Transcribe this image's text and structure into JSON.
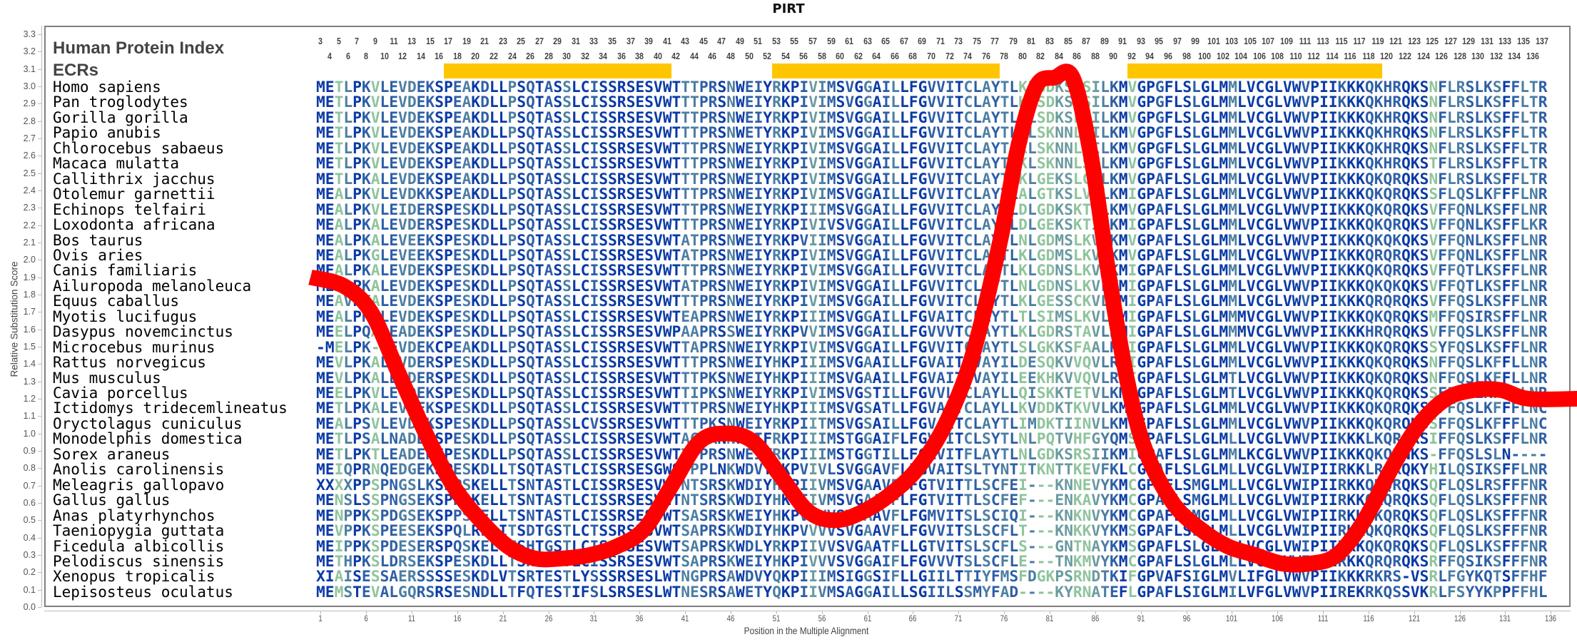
{
  "chart_data": {
    "type": "line",
    "title": "PIRT",
    "xlabel": "Position in the Multiple Alignment",
    "ylabel": "Relative Substitution Score",
    "ylim": [
      0.0,
      3.3
    ],
    "xlim": [
      1,
      136
    ],
    "grid": false,
    "legend": null,
    "y_ticks": [
      "3.3",
      "3.2",
      "3.1",
      "3.0",
      "2.9",
      "2.8",
      "2.7",
      "2.6",
      "2.5",
      "2.4",
      "2.3",
      "2.2",
      "2.1",
      "2.0",
      "1.9",
      "1.8",
      "1.7",
      "1.6",
      "1.5",
      "1.4",
      "1.3",
      "1.2",
      "1.1",
      "1.0",
      "0.9",
      "0.8",
      "0.7",
      "0.6",
      "0.5",
      "0.4",
      "0.3",
      "0.2",
      "0.1",
      "0.0"
    ],
    "x_ticks": [
      "1",
      "6",
      "11",
      "16",
      "21",
      "26",
      "31",
      "36",
      "41",
      "46",
      "51",
      "56",
      "61",
      "66",
      "71",
      "76",
      "81",
      "86",
      "91",
      "96",
      "101",
      "106",
      "111",
      "116",
      "121",
      "126",
      "131",
      "136"
    ],
    "series": [
      {
        "name": "Relative Substitution Score",
        "color": "#ff0000",
        "x": [
          1,
          4,
          7,
          10,
          13,
          16,
          19,
          22,
          25,
          28,
          31,
          34,
          37,
          40,
          43,
          46,
          49,
          52,
          55,
          58,
          61,
          64,
          67,
          70,
          73,
          76,
          78,
          80,
          82,
          84,
          86,
          88,
          90,
          92,
          95,
          98,
          101,
          104,
          107,
          110,
          113,
          116,
          119,
          122,
          125,
          128,
          131,
          134,
          136
        ],
        "values": [
          1.9,
          1.85,
          1.7,
          1.35,
          1.0,
          0.7,
          0.5,
          0.35,
          0.28,
          0.28,
          0.3,
          0.35,
          0.45,
          0.7,
          0.95,
          1.0,
          0.95,
          0.75,
          0.55,
          0.5,
          0.55,
          0.65,
          0.8,
          1.05,
          1.45,
          2.1,
          2.65,
          3.0,
          3.05,
          3.05,
          2.6,
          1.9,
          1.3,
          0.9,
          0.6,
          0.45,
          0.35,
          0.3,
          0.25,
          0.25,
          0.3,
          0.5,
          0.8,
          1.05,
          1.2,
          1.25,
          1.25,
          1.2,
          1.2
        ]
      }
    ],
    "annotations": {
      "human_protein_index_label": "Human Protein Index",
      "ecrs_label": "ECRs",
      "ecr_regions": [
        {
          "start": 17,
          "end": 41
        },
        {
          "start": 53,
          "end": 77
        },
        {
          "start": 92,
          "end": 119
        }
      ]
    }
  },
  "header": {
    "title": "PIRT",
    "human_protein_index_label": "Human Protein Index",
    "ecrs_label": "ECRs",
    "index_odd": [
      "3",
      "5",
      "7",
      "9",
      "11",
      "13",
      "15",
      "17",
      "19",
      "21",
      "23",
      "25",
      "27",
      "29",
      "31",
      "33",
      "35",
      "37",
      "39",
      "41",
      "43",
      "45",
      "47",
      "49",
      "51",
      "53",
      "55",
      "57",
      "59",
      "61",
      "63",
      "65",
      "67",
      "69",
      "71",
      "73",
      "75",
      "77",
      "79",
      "81",
      "83",
      "85",
      "87",
      "89",
      "91",
      "93",
      "95",
      "97",
      "99",
      "101",
      "103",
      "105",
      "107",
      "109",
      "111",
      "113",
      "115",
      "117",
      "119",
      "121",
      "123",
      "125",
      "127",
      "129",
      "131",
      "133",
      "135",
      "137"
    ],
    "index_even": [
      "4",
      "6",
      "8",
      "10",
      "12",
      "14",
      "16",
      "18",
      "20",
      "22",
      "24",
      "26",
      "28",
      "30",
      "32",
      "34",
      "36",
      "38",
      "40",
      "42",
      "44",
      "46",
      "48",
      "50",
      "52",
      "54",
      "56",
      "58",
      "60",
      "62",
      "64",
      "66",
      "68",
      "70",
      "72",
      "74",
      "76",
      "78",
      "80",
      "82",
      "84",
      "86",
      "88",
      "90",
      "92",
      "94",
      "96",
      "98",
      "100",
      "102",
      "104",
      "106",
      "108",
      "110",
      "112",
      "114",
      "116",
      "118",
      "120",
      "122",
      "124",
      "126",
      "128",
      "130",
      "132",
      "134",
      "136"
    ]
  },
  "axes": {
    "ylabel": "Relative Substitution Score",
    "xlabel": "Position in the Multiple Alignment"
  },
  "alignment": [
    {
      "species": "Homo sapiens",
      "sequence": "METLPKVLEVDEKSPEAKDLLPSQTASSLCISSRSESVWTTTPRSNWEIYRKPIVIMSVGGAILLFGVVITCLAYTLKLSDKSLSILKMVGPGFLSLGLMMLVCGLVWVPIIKKKQKHRQKSNFLRSLKSFFLTR"
    },
    {
      "species": "Pan troglodytes",
      "sequence": "METLPKVLEVDEKSPEAKDLLPSQTASSLCISSRSESVWTTTPRSNWEIYRKPIVIMSVGGAILLFGVVITCLAYTLKLSDKSLSILKMVGPGFLSLGLMMLVCGLVWVPIIKKKQKHRQKSNFLRSLKSFFLTR"
    },
    {
      "species": "Gorilla gorilla",
      "sequence": "METLPKVLEVDEKSPEAKDLLPSQTASSLCISSRSESVWTTTPRSNWEIYRKPIVIMSVGGAILLFGVVITCLAYTLKLSDKSLSILKMVGPGFLSLGLMMLVCGLVWVPIIKKKQKHRQKSNFLRSLKSFFLTR"
    },
    {
      "species": "Papio anubis",
      "sequence": "METLPKVLEVDEKSPEAKDLLPSQTASSLCISSRSESVWTTTPRSNWETYRKPIVIMSVGGAILLFGVVITCLAYTLKLSKNNLSILKMVGPGFLSLGLMMLVCGLVWVPIIKKKQKHRQKSNFLRSLKSFFLTR"
    },
    {
      "species": "Chlorocebus sabaeus",
      "sequence": "METLPKVLEVDEKSPEAKDLLPSQTASSLCISSRSESVWTTTPRSNWEIYRKPIVIMSVGGAILLFGVVITCLAYTLKLSKNNLSILKMVGPGFLSLGLMMLVCGLVWVPIIKKKQKHRQKSNFLRSLKSFFLTR"
    },
    {
      "species": "Macaca mulatta",
      "sequence": "METLPKVLEVDEKSPEAKDLLPSQTASSLCISSRSESVWTTTPRSNWEIYRKPIVIMSVGGAILLFGVVITCLAYTLKLSKNNLSILKMVGPGFLSLGLMMLVCGLVWVPIIKKKQKHRQKSTFLRSLKSFFLTR"
    },
    {
      "species": "Callithrix jacchus",
      "sequence": "METLPKALEVDEKSPEAKDLLPSQTASSLCISSRSESVWTTTPRSNWEIYRKPIVIMSVGGAILLFGVVITCLAYTLKLGEKSLCILKMVGPAFLSLGLMMLVCGLVWVPIIKKKQKQRQKSNFLRSLKSFFLTR"
    },
    {
      "species": "Otolemur garnettii",
      "sequence": "MEALPKVLEVDKKSPEAKDLLPSQTASSLCISSRSESVWTTTPRSNWEIYRKPIVIMSVGGAILLFGVVITCLAYTLALGTKSLVALKMIGPAFLSLGLMMLVCGLVWVPIIKKKQKQRQKSSFLQSLKFFFLNR"
    },
    {
      "species": "Echinops telfairi",
      "sequence": "MEALPKVLEIDERSPESKDLLPSQTASSLCISSRSESVWTTTPRSNWEIYRKPIIIMSVGGAILLFGVVITCLAYILDLGDKSKTSLKMVGPAFLSLGLMMLVCGLVWVPIIKKKQKQRQKSVFFQNLKSFFLNR"
    },
    {
      "species": "Loxodonta africana",
      "sequence": "MEALPKALEVDERSPESKDLLPSQTASSLCISSRSESVWTTTPRSNWEIYRKPIVIVSVGGAILLFGVVITCLAYTLDLGEKSKTILKMIGPAFLSLGLMMLVCGLVWVPIIKKKQKQRQKSVFFQNLKSFFLKR"
    },
    {
      "species": "Bos taurus",
      "sequence": "MEALPKALEVEEKSPESKDLLPSQTASSLCISSRSESVWTATPRSNWEIYRKPVIIMSVGGAILLFGVVITCLAYTLNLGDMSLKVLKMVGPAFLSLGLMMLVCGLVWVPIIKKKQKQKQKSVFFQNLKSFFLNR"
    },
    {
      "species": "Ovis aries",
      "sequence": "MEALPKGLEVEEKSPESKDLLPSQTASSLCISSRSESVWTATPRSNWEIYRKPIVIMSVGGAILLFGVVITCLAYTLKLGDMSLKVLKMVGPAFLSLGLMMLVCGLVWVPIIKKKQRQRQKSVFFQNLKSFFLNR"
    },
    {
      "species": "Canis familiaris",
      "sequence": "MEALPKALEVDEKSPESKDLLPSQTASSLCISSRSESVWTTTPRSNWEIYRKPIVIMSVGGAILLFGVVITCLAYTLKLGDNSLKVLKMIGPAFLSLGLMMLVCGLVWVPIIKKKQKQRQKSVFFQTLKSFFLNR"
    },
    {
      "species": "Ailuropoda melanoleuca",
      "sequence": "MEALPKALEVDEKSPESKDLLPSQTASSLCISSRSESVWTATPRSNWEIYRKPIVIMSVGGAILLFGVVITCLAYTLNLGDNSLKVLKMIGPAFLSLGLMMLVCGLVWVPIIKKKQKQKQKSVFFQTLKSFFLNR"
    },
    {
      "species": "Equus caballus",
      "sequence": "MEAVPKALEVDEKSPESKDLLPSQTASSLCISSRSESVWTTTPRSNWEIYRKPIVIMSVGGAILLFGVVITCLAYTLKLGESSCKVLKMIGPAFLSLGLMMLVCGLVWVPIIKKKQRQRQKSVFFQSLKSFFLNR"
    },
    {
      "species": "Myotis lucifugus",
      "sequence": "MEALPKALEVDEKSPESKDLLPSQTASSLCISSRSESVWTEAPRSNWEIYRKPIIIMSVGGAILLFGVAITCLAYTLTLSIMSLKVLKMIGPAFLSLGLMMMVCGLVWVPIIKKKQKQRQKSMFFQSIRSFFLNR"
    },
    {
      "species": "Dasypus novemcinctus",
      "sequence": "MEELPQALEADEKSPESKDLLPSQTASSLCISSRSESVWPAAPRSSWEIYRKPVVIMSVGGAILLFGVVVTCLAYTLKLGDRSTAVLKMIGPAFLSLGLMMMVCGLVWVPIIKKKHRQRQKSVFFQSLKSFFLNR"
    },
    {
      "species": "Microcebus murinus",
      "sequence": "-MELPK-LEVDEKCPEAKDLLPSQTASSLCISSRSESVWTTAPRSNWEIYRKPIVIMSVGGAILLFGVVITCLAYTLSLGKKSFAALKMIGPAFLSLGLMMLVCGLVWVPIIKKKQKQRQKSSYFQSLKSFFLNR"
    },
    {
      "species": "Rattus norvegicus",
      "sequence": "MEVLPKALEVDERSPESKDLLPSQTASSLCISSRSESVWTTTPRSNWEIYHKPIIIMSVGAAILLFGVAITCVAYILDESQKVVQVLRMIGPAFLSLGLMMLVCGLVWVPIIKKKQKQRQKSNFFQSLKFFLLNR"
    },
    {
      "species": "Mus musculus",
      "sequence": "MEVLPKALEVDERSPESKDLLPSQTASSLCISSRSESVWTTTPKSNWEIYHKPIIIMSVGAAILLFGVAITCVAYILEEKHKVVQVLRMIGPAFLSLGLMTLVCGLVWVPIIKKKQKQRQKSNFFQSLKFFLLNR"
    },
    {
      "species": "Cavia porcellus",
      "sequence": "MEELPKVLEVDEKSPESKDLLPSQTASSLCISSRSESVWTTIPKSNWEIYRKPIVIMSVGSTILLFGVVLTCLAYLLQISKKTETVLKMIGPAFLSLGLMTLVCGLVWVPIIKKKQKQRQKSSFFQSLKFFLLNR"
    },
    {
      "species": "Ictidomys tridecemlineatus",
      "sequence": "METLPKALEVDEKSPESKDLLPSQTASSLCISSRSESVWTTTPRSNWEIYHKPIIIMSVGSATLLFGVAITCLAYLLKVDDKTKVVLKMTGPAFLSLGLMMLVCGLVWVPIIKKKQKQRQKSSFFQSLKFFFLNC"
    },
    {
      "species": "Oryctolagus cuniculus",
      "sequence": "MEALPSVLEVDEKSPESKDLLPSQTASSLCVSSRSESVWTTTPKSNWEIYRKPIITMSVGSAILLFGVAITCLAYTLIMDKTIINVLKMTGPAFLSLGLMMLVCGLVWVPIIKKKQKQRQKSSFFQSLKFFFLNC"
    },
    {
      "species": "Monodelphis domestica",
      "sequence": "METLPSALNADEKSPESKDLLPSQTASSLCISSRSESVWTAGSKNNWEIFRKPIIIMSTGGAIFLFGVVITCLSYTLNLPQTVHFGYQMSGPAFLSLGLMLLVCGLVWVPIIKKKLKQRQKSIFFQSLKSFFLNR"
    },
    {
      "species": "Sorex araneus",
      "sequence": "METLPKTLEADEKFPESKDLLPSQTASSLCISSRSESVWTTTPRSNWEIYRKPIIIMSTGGTILLFGLVITFLAYTLNLGDKSRSIIKMIGPAFLSLGLMMLKCGLVWVPIIKKKQKQRNKS-FFQSLSLN----"
    },
    {
      "species": "Anolis carolinensis",
      "sequence": "MEIQPRNQEDGEKSPESKDLLTSQTASTLCISSRSESGWSTPPLNKWDVYHKPVIVLSVGGAVFLFGVAITSLTYNTITKNTTKEVFKLCGPAFLSLGLMLLVCGLVWIPIIRKKLRQKQKYHILQSIKSFFLNR"
    },
    {
      "species": "Meleagris gallopavo",
      "sequence": "XXXXPPSPNGSLKSPPSKELLTSNTASTLCISSRSESVWTNTSRSKWDIYHKPIIVMSVGAAVFLFGTVITTLSCFEI---KNNEVYKMCGPAFLSMGLMLLVCGLVWIPIIRKKQKQRQKSQFLQSLRSFFFNR"
    },
    {
      "species": "Gallus gallus",
      "sequence": "MENSLSSPNGSEKSPPSKELLTSNTASTLCISSRSESVWTNTSRSKWDIYHKPIIVMSVGAAVFLFGTVITTLSCFEF---ENKAVYKMCGPAFLSMGLMLLVCGLVWIPIIRKKQKQRQKSQFLQSLKSFFFNR"
    },
    {
      "species": "Anas platyrhynchos",
      "sequence": "MENPPKSPDGSEKSPPSKELLTSNTASTLCISSRSESVWTSASRSKWEIYHKPVIVVSVGAAVFLFGMVITSLSCIQI---KNKNVYKMCGPAFLSMGLMLLVCGLVWIPIIRKKQKQRQKSQFLQSLKSFFFNR"
    },
    {
      "species": "Taeniopygia guttata",
      "sequence": "MEVPPKSPEESEKSPQLRELITSDTGSTLCTSSRSESVWTSAPRSKWDIYHKPVVVVSVGAAVFLFGVVITSLSCFLT---KNKKVYKMSGPAFLSLGLMLLVCGLVWIPIIRKKQKQRQKSQFLQSLKSFFFNR"
    },
    {
      "species": "Ficedula albicollis",
      "sequence": "MEIPPKSPDESERSPQSKELVTSHTGSTLCISSRSESVWTSAPRSKWDLYRKPIIVVSVGAATFLLGTVITSLSCFLS---GNTNAYKMSGPAFLSLGLMLLVCGLVWIPIIRKKQKQRQKSQFLQSLKSFFFNR"
    },
    {
      "species": "Pelodiscus sinensis",
      "sequence": "METHPKSLDRSEKSPESKDLLTSHTASTLCISSRSESVWTSAPRSKWEIYHKPIVVVSVGGAIFLFGVVVTSLSCFLE---TNKMVYKMCGPAFLSLGLMLLVCGFVWIPVIRKKQRQRQKSRFFQSIKSFFFNR"
    },
    {
      "species": "Xenopus tropicalis",
      "sequence": "XIAISESSAERSSSSESKDLVTSRTESTLYSSSRSESLWTNGPRSAWDVYQKPIIIMSIGGSIFLLGIILTTIYFMSFDGKPSRNDTKIFGPVAFSIGLMVLIFGLVWVPIIKKKRKRS-VSRLFGYKQTSFFHF"
    },
    {
      "species": "Lepisosteus oculatus",
      "sequence": "MEMSTEVALGQRSRSESNDLLTFQTESTIFSLSRSESLWTNESRSAWETYQKPIIVMSAGGAILLSGIILSSMYFAD----KYRNATEFLGPAFLSIGLMILVFGLVWVPIIREKRKQSSVKRLFSYYKPPFFHL"
    }
  ]
}
